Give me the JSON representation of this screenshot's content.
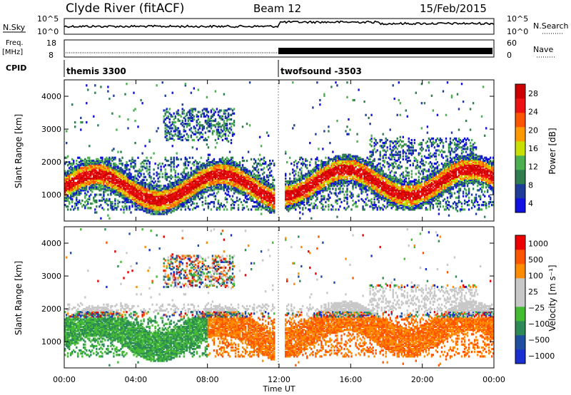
{
  "header": {
    "title": "Clyde River (fitACF)",
    "beam": "Beam 12",
    "date": "15/Feb/2015"
  },
  "top_panels": {
    "nsky_label": "N.Sky",
    "nsky_ticks": [
      "10^5",
      "10^0"
    ],
    "nsearch_label": "N.Search",
    "nsearch_ticks": [
      "10^5",
      "10^0"
    ],
    "freq_label": "Freq.",
    "freq_unit": "[MHz]",
    "freq_ticks": [
      "18",
      "8"
    ],
    "nave_label": "Nave",
    "nave_ticks": [
      "60",
      "0"
    ],
    "cpid_label": "CPID",
    "cpid_segments": [
      "themis 3300",
      "twofsound -3503"
    ]
  },
  "colors": {
    "power_scale": [
      "#1010e0",
      "#1e3c9a",
      "#2e7d4f",
      "#4caf50",
      "#c8e000",
      "#ff9900",
      "#ff5500",
      "#ee1111",
      "#cc0000"
    ],
    "velocity_scale": [
      "#1a2fd0",
      "#1f4fa0",
      "#2e8b57",
      "#44bb33",
      "#c8c8c8",
      "#c8c8c8",
      "#ff8c00",
      "#ff5500",
      "#ee0000"
    ]
  },
  "chart_data": [
    {
      "type": "heatmap",
      "name": "power",
      "ylabel": "Slant Range [km]",
      "ylim": [
        200,
        4500
      ],
      "y_ticks": [
        "4000",
        "3000",
        "2000",
        "1000"
      ],
      "x_ticks": [
        "00:00",
        "04:00",
        "08:00",
        "12:00",
        "16:00",
        "20:00",
        "00:00"
      ],
      "colorbar_label": "Power [dB]",
      "colorbar_ticks": [
        "28",
        "24",
        "20",
        "16",
        "12",
        "8",
        "4"
      ]
    },
    {
      "type": "heatmap",
      "name": "velocity",
      "ylabel": "Slant Range [km]",
      "ylim": [
        200,
        4500
      ],
      "y_ticks": [
        "4000",
        "3000",
        "2000",
        "1000"
      ],
      "x_ticks": [
        "00:00",
        "04:00",
        "08:00",
        "12:00",
        "16:00",
        "20:00",
        "00:00"
      ],
      "xlabel": "Time UT",
      "colorbar_label": "Velocity [m s⁻¹]",
      "colorbar_ticks": [
        "1000",
        "500",
        "100",
        "25",
        "−25",
        "−100",
        "−500",
        "−1000"
      ]
    }
  ]
}
